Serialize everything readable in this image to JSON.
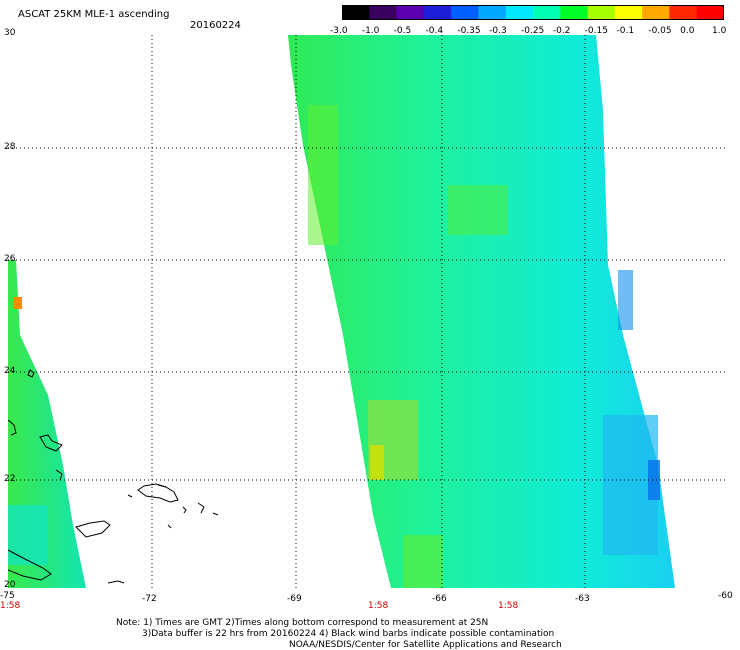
{
  "header": {
    "title": "ASCAT 25KM MLE-1 ascending",
    "date": "20160224"
  },
  "colorbar": {
    "labels": [
      "-3.0",
      "-1.0",
      "-0.5",
      "-0.4",
      "-0.35",
      "-0.3",
      "-0.25",
      "-0.2",
      "-0.15",
      "-0.1",
      "-0.05",
      "0.0",
      "1.0"
    ],
    "colors": [
      "#000000",
      "#3a0060",
      "#5a00b0",
      "#1e1ed8",
      "#0060ff",
      "#00a8ff",
      "#00e8ff",
      "#00ffb4",
      "#00ff28",
      "#a8ff00",
      "#ffff00",
      "#ffa800",
      "#ff2800",
      "#ff0000"
    ]
  },
  "axes": {
    "lat_labels": [
      "30",
      "28",
      "26",
      "24",
      "22",
      "20"
    ],
    "lon_labels": [
      "-75",
      "-72",
      "-69",
      "-66",
      "-63",
      "-60"
    ]
  },
  "times": [
    "1:58",
    "1:58",
    "1:58"
  ],
  "notes": {
    "line1": "Note: 1) Times are GMT 2)Times along bottom correspond to measurement at 25N",
    "line2": "3)Data buffer is 22 hrs from 20160224 4) Black wind barbs indicate possible contamination",
    "line3": "NOAA/NESDIS/Center for Satellite Applications and Research"
  },
  "swaths": [
    {
      "name": "main-swath",
      "color": "#17f0a6"
    },
    {
      "name": "west-swath",
      "color": "#1ee888"
    }
  ]
}
